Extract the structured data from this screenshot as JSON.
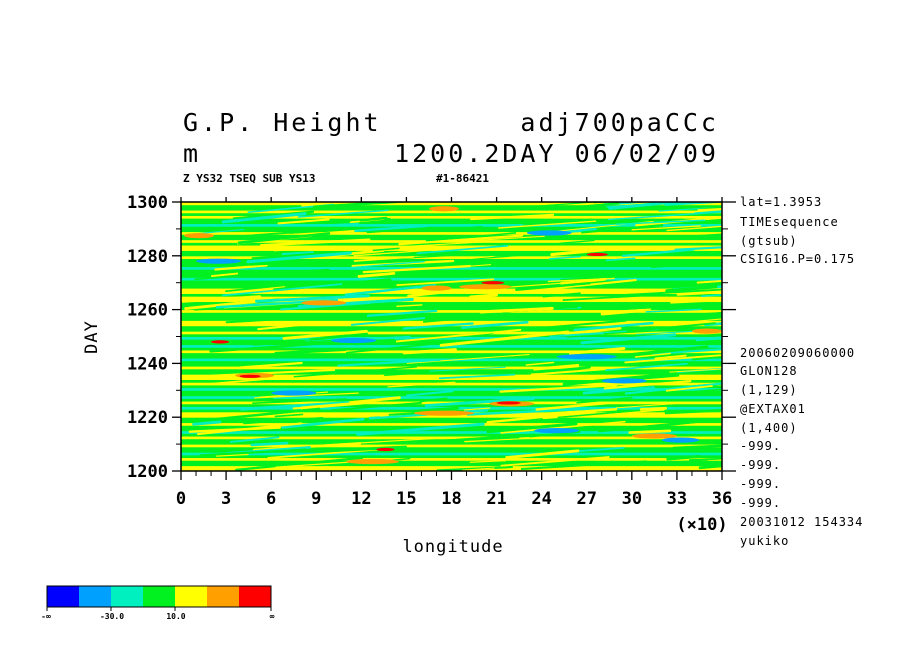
{
  "header": {
    "title_left": "G.P. Height",
    "title_right": "adj700paCCc",
    "units": "m",
    "subtitle_right": "1200.2DAY 06/02/09",
    "sub_left": "Z YS32 TSEQ SUB YS13",
    "sub_right": "#1-86421"
  },
  "side_info": [
    "lat=1.3953",
    "TIMEsequence",
    "(gtsub)",
    "CSIG16.P=0.175",
    "20060209060000",
    "GLON128",
    "(1,129)",
    "@EXTAX01",
    "(1,400)",
    "-999.",
    "-999.",
    "-999.",
    "-999.",
    "20031012 154334",
    "yukiko"
  ],
  "colors": {
    "levels": [
      "#0000ff",
      "#00a0ff",
      "#00f0c0",
      "#00f020",
      "#ffff00",
      "#ffa000",
      "#ff0000"
    ],
    "frame": "#000000"
  },
  "legend": {
    "labels": [
      "-∞",
      "-30.0",
      "10.0",
      "∞"
    ]
  },
  "chart_data": {
    "type": "heatmap",
    "title": "G.P. Height",
    "xlabel": "longitude",
    "ylabel": "DAY",
    "x_multiplier": "(×10)",
    "xlim": [
      0,
      36
    ],
    "ylim": [
      1200,
      1300
    ],
    "x_ticks": [
      "0",
      "3",
      "6",
      "9",
      "12",
      "15",
      "18",
      "21",
      "24",
      "27",
      "30",
      "33",
      "36"
    ],
    "y_ticks": [
      "1200",
      "1220",
      "1240",
      "1260",
      "1280",
      "1300"
    ],
    "x_tick_values": [
      0,
      3,
      6,
      9,
      12,
      15,
      18,
      21,
      24,
      27,
      30,
      33,
      36
    ],
    "y_tick_values": [
      1200,
      1220,
      1240,
      1260,
      1280,
      1300
    ],
    "bands": [
      {
        "day": 1200,
        "level": 4
      },
      {
        "day": 1201,
        "level": 4
      },
      {
        "day": 1202,
        "level": 3
      },
      {
        "day": 1203,
        "level": 3
      },
      {
        "day": 1204,
        "level": 4
      },
      {
        "day": 1205,
        "level": 3
      },
      {
        "day": 1206,
        "level": 2
      },
      {
        "day": 1207,
        "level": 3
      },
      {
        "day": 1208,
        "level": 3
      },
      {
        "day": 1209,
        "level": 4
      },
      {
        "day": 1210,
        "level": 3
      },
      {
        "day": 1211,
        "level": 3
      },
      {
        "day": 1212,
        "level": 4
      },
      {
        "day": 1213,
        "level": 3
      },
      {
        "day": 1214,
        "level": 2
      },
      {
        "day": 1215,
        "level": 3
      },
      {
        "day": 1216,
        "level": 3
      },
      {
        "day": 1217,
        "level": 4
      },
      {
        "day": 1218,
        "level": 3
      },
      {
        "day": 1219,
        "level": 3
      },
      {
        "day": 1220,
        "level": 4
      },
      {
        "day": 1221,
        "level": 4
      },
      {
        "day": 1222,
        "level": 3
      },
      {
        "day": 1223,
        "level": 2
      },
      {
        "day": 1224,
        "level": 3
      },
      {
        "day": 1225,
        "level": 4
      },
      {
        "day": 1226,
        "level": 3
      },
      {
        "day": 1227,
        "level": 2
      },
      {
        "day": 1228,
        "level": 3
      },
      {
        "day": 1229,
        "level": 3
      },
      {
        "day": 1230,
        "level": 2
      },
      {
        "day": 1231,
        "level": 3
      },
      {
        "day": 1232,
        "level": 4
      },
      {
        "day": 1233,
        "level": 3
      },
      {
        "day": 1234,
        "level": 4
      },
      {
        "day": 1235,
        "level": 4
      },
      {
        "day": 1236,
        "level": 3
      },
      {
        "day": 1237,
        "level": 3
      },
      {
        "day": 1238,
        "level": 4
      },
      {
        "day": 1239,
        "level": 3
      },
      {
        "day": 1240,
        "level": 3
      },
      {
        "day": 1241,
        "level": 2
      },
      {
        "day": 1242,
        "level": 3
      },
      {
        "day": 1243,
        "level": 3
      },
      {
        "day": 1244,
        "level": 4
      },
      {
        "day": 1245,
        "level": 3
      },
      {
        "day": 1246,
        "level": 2
      },
      {
        "day": 1247,
        "level": 3
      },
      {
        "day": 1248,
        "level": 3
      },
      {
        "day": 1249,
        "level": 2
      },
      {
        "day": 1250,
        "level": 3
      },
      {
        "day": 1251,
        "level": 4
      },
      {
        "day": 1252,
        "level": 3
      },
      {
        "day": 1253,
        "level": 3
      },
      {
        "day": 1254,
        "level": 4
      },
      {
        "day": 1255,
        "level": 4
      },
      {
        "day": 1256,
        "level": 3
      },
      {
        "day": 1257,
        "level": 3
      },
      {
        "day": 1258,
        "level": 3
      },
      {
        "day": 1259,
        "level": 4
      },
      {
        "day": 1260,
        "level": 3
      },
      {
        "day": 1261,
        "level": 3
      },
      {
        "day": 1262,
        "level": 3
      },
      {
        "day": 1263,
        "level": 4
      },
      {
        "day": 1264,
        "level": 4
      },
      {
        "day": 1265,
        "level": 3
      },
      {
        "day": 1266,
        "level": 4
      },
      {
        "day": 1267,
        "level": 4
      },
      {
        "day": 1268,
        "level": 3
      },
      {
        "day": 1269,
        "level": 3
      },
      {
        "day": 1270,
        "level": 3
      },
      {
        "day": 1271,
        "level": 2
      },
      {
        "day": 1272,
        "level": 3
      },
      {
        "day": 1273,
        "level": 3
      },
      {
        "day": 1274,
        "level": 3
      },
      {
        "day": 1275,
        "level": 2
      },
      {
        "day": 1276,
        "level": 3
      },
      {
        "day": 1277,
        "level": 3
      },
      {
        "day": 1278,
        "level": 3
      },
      {
        "day": 1279,
        "level": 4
      },
      {
        "day": 1280,
        "level": 3
      },
      {
        "day": 1281,
        "level": 3
      },
      {
        "day": 1282,
        "level": 4
      },
      {
        "day": 1283,
        "level": 4
      },
      {
        "day": 1284,
        "level": 3
      },
      {
        "day": 1285,
        "level": 4
      },
      {
        "day": 1286,
        "level": 3
      },
      {
        "day": 1287,
        "level": 3
      },
      {
        "day": 1288,
        "level": 4
      },
      {
        "day": 1289,
        "level": 3
      },
      {
        "day": 1290,
        "level": 3
      },
      {
        "day": 1291,
        "level": 2
      },
      {
        "day": 1292,
        "level": 3
      },
      {
        "day": 1293,
        "level": 3
      },
      {
        "day": 1294,
        "level": 4
      },
      {
        "day": 1295,
        "level": 3
      },
      {
        "day": 1296,
        "level": 4
      },
      {
        "day": 1297,
        "level": 3
      },
      {
        "day": 1298,
        "level": 3
      },
      {
        "day": 1299,
        "level": 4
      }
    ],
    "patches": [
      {
        "x0": 3.6,
        "x1": 6.2,
        "day": 1235.5,
        "level": 5
      },
      {
        "x0": 3.9,
        "x1": 5.3,
        "day": 1235.2,
        "level": 6
      },
      {
        "x0": 15.5,
        "x1": 19.5,
        "day": 1221.5,
        "level": 5
      },
      {
        "x0": 20.5,
        "x1": 23.5,
        "day": 1225.0,
        "level": 5
      },
      {
        "x0": 21.0,
        "x1": 22.6,
        "day": 1225.3,
        "level": 6
      },
      {
        "x0": 18.5,
        "x1": 22.0,
        "day": 1268.5,
        "level": 5
      },
      {
        "x0": 20.0,
        "x1": 21.5,
        "day": 1270.0,
        "level": 6
      },
      {
        "x0": 16.0,
        "x1": 18.0,
        "day": 1268.0,
        "level": 5
      },
      {
        "x0": 0.2,
        "x1": 2.2,
        "day": 1287.5,
        "level": 5
      },
      {
        "x0": 16.5,
        "x1": 18.5,
        "day": 1297.5,
        "level": 5
      },
      {
        "x0": 30.0,
        "x1": 33.0,
        "day": 1213.0,
        "level": 5
      },
      {
        "x0": 32.0,
        "x1": 34.5,
        "day": 1211.5,
        "level": 1
      },
      {
        "x0": 23.5,
        "x1": 26.5,
        "day": 1215.0,
        "level": 1
      },
      {
        "x0": 10.0,
        "x1": 13.0,
        "day": 1248.5,
        "level": 1
      },
      {
        "x0": 25.0,
        "x1": 29.0,
        "day": 1242.5,
        "level": 1
      },
      {
        "x0": 6.0,
        "x1": 9.0,
        "day": 1229.0,
        "level": 1
      },
      {
        "x0": 28.0,
        "x1": 31.0,
        "day": 1233.5,
        "level": 1
      },
      {
        "x0": 1.0,
        "x1": 4.0,
        "day": 1278.0,
        "level": 1
      },
      {
        "x0": 23.0,
        "x1": 26.0,
        "day": 1288.5,
        "level": 1
      },
      {
        "x0": 11.0,
        "x1": 14.5,
        "day": 1203.5,
        "level": 5
      },
      {
        "x0": 34.0,
        "x1": 36.0,
        "day": 1252.0,
        "level": 5
      },
      {
        "x0": 8.0,
        "x1": 11.0,
        "day": 1262.5,
        "level": 5
      },
      {
        "x0": 2.0,
        "x1": 3.2,
        "day": 1248.0,
        "level": 6
      },
      {
        "x0": 27.0,
        "x1": 28.4,
        "day": 1280.5,
        "level": 6
      },
      {
        "x0": 13.0,
        "x1": 14.2,
        "day": 1208.0,
        "level": 6
      }
    ]
  }
}
